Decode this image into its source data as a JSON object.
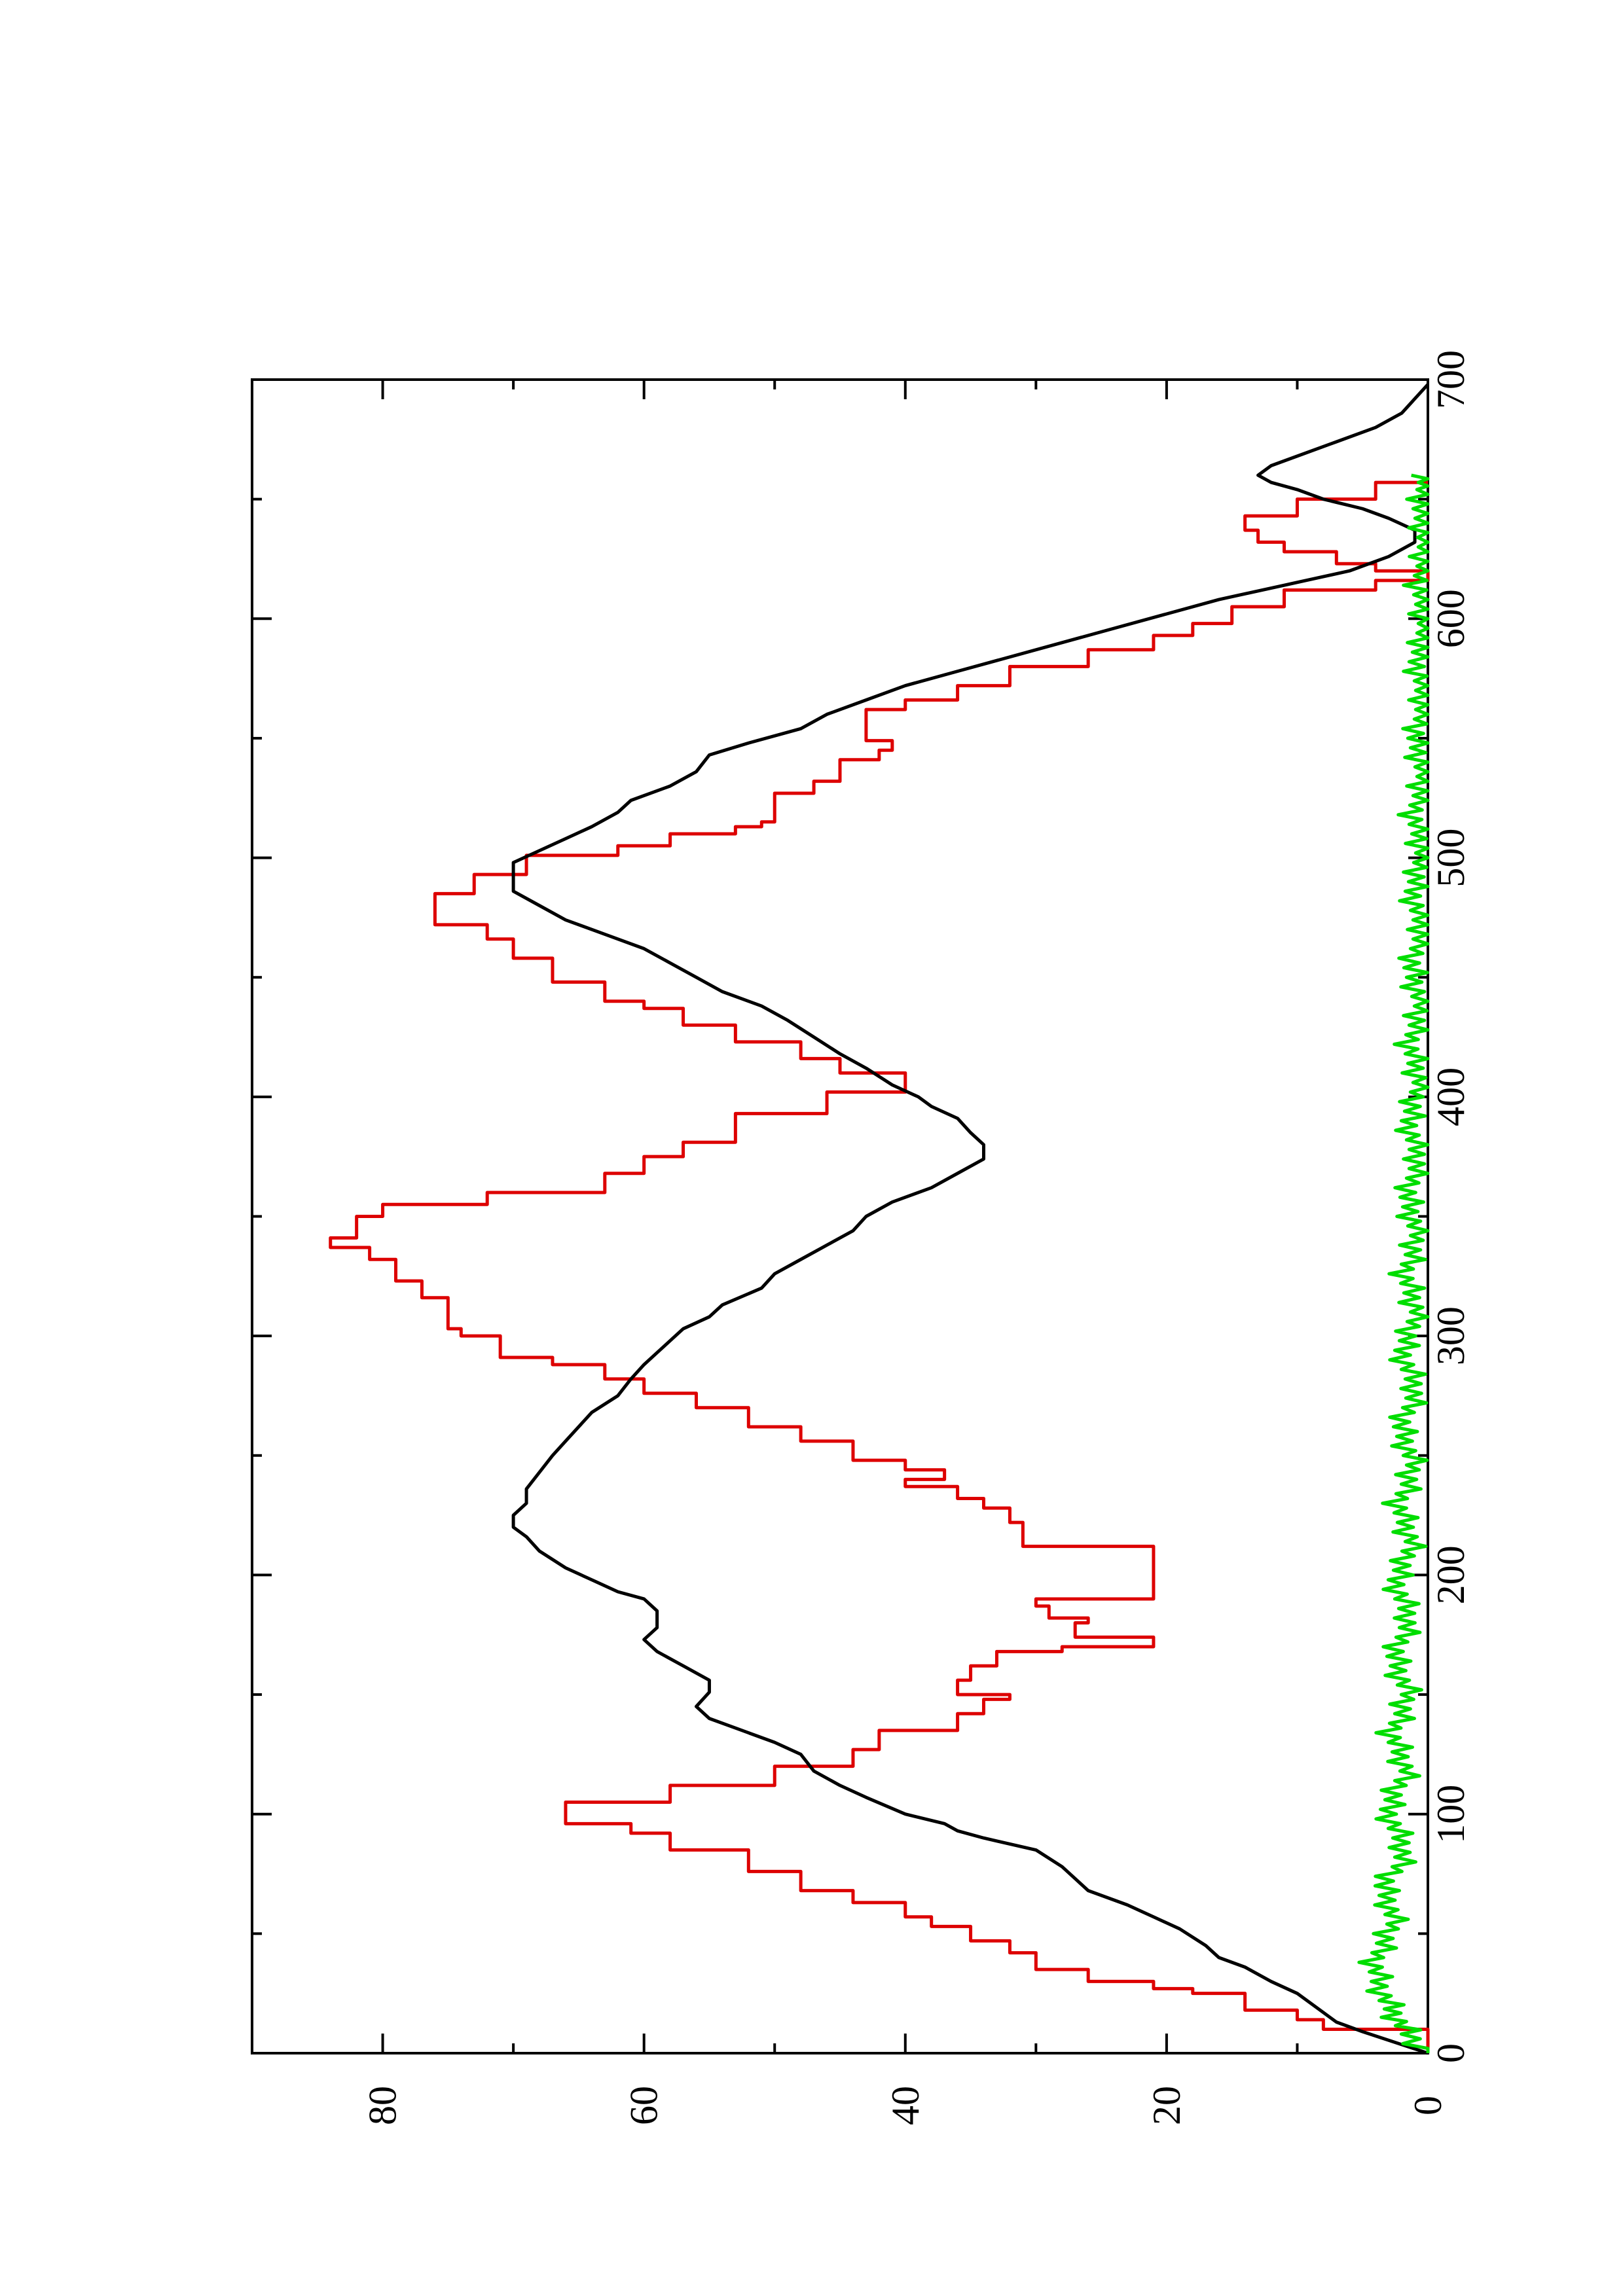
{
  "chart_data": {
    "type": "line",
    "orientation": "rotated 90° counter-clockwise (x axis vertical, y axis horizontal)",
    "title": "",
    "xlabel": "",
    "ylabel": "",
    "xlim": [
      0,
      700
    ],
    "ylim": [
      0,
      90
    ],
    "x_ticks": [
      0,
      100,
      200,
      300,
      400,
      500,
      600,
      700
    ],
    "x_tick_labels": [
      "0",
      "100",
      "200",
      "300",
      "400",
      "500",
      "600",
      "700"
    ],
    "y_ticks": [
      0,
      20,
      40,
      60,
      80
    ],
    "y_tick_labels": [
      "0",
      "20",
      "40",
      "60",
      "80"
    ],
    "grid": false,
    "legend": "none",
    "series": [
      {
        "color": "#dd0000",
        "style": "step",
        "points": [
          [
            0,
            0
          ],
          [
            10,
            8
          ],
          [
            14,
            10
          ],
          [
            18,
            14
          ],
          [
            25,
            18
          ],
          [
            27,
            21
          ],
          [
            30,
            26
          ],
          [
            35,
            30
          ],
          [
            42,
            32
          ],
          [
            47,
            35
          ],
          [
            53,
            38
          ],
          [
            57,
            40
          ],
          [
            63,
            44
          ],
          [
            68,
            48
          ],
          [
            76,
            52
          ],
          [
            85,
            58
          ],
          [
            92,
            61
          ],
          [
            96,
            66
          ],
          [
            105,
            58
          ],
          [
            112,
            50
          ],
          [
            120,
            44
          ],
          [
            127,
            42
          ],
          [
            135,
            36
          ],
          [
            142,
            34
          ],
          [
            148,
            32
          ],
          [
            150,
            36
          ],
          [
            156,
            35
          ],
          [
            162,
            33
          ],
          [
            168,
            28
          ],
          [
            170,
            21
          ],
          [
            174,
            27
          ],
          [
            180,
            26
          ],
          [
            182,
            29
          ],
          [
            187,
            30
          ],
          [
            190,
            21
          ],
          [
            196,
            21
          ],
          [
            212,
            31
          ],
          [
            222,
            32
          ],
          [
            228,
            34
          ],
          [
            232,
            36
          ],
          [
            237,
            40
          ],
          [
            240,
            37
          ],
          [
            244,
            40
          ],
          [
            248,
            44
          ],
          [
            256,
            48
          ],
          [
            262,
            52
          ],
          [
            270,
            56
          ],
          [
            276,
            60
          ],
          [
            282,
            63
          ],
          [
            288,
            67
          ],
          [
            291,
            71
          ],
          [
            300,
            74
          ],
          [
            303,
            75
          ],
          [
            316,
            77
          ],
          [
            323,
            79
          ],
          [
            332,
            81
          ],
          [
            337,
            84
          ],
          [
            341,
            82
          ],
          [
            350,
            80
          ],
          [
            355,
            72
          ],
          [
            360,
            63
          ],
          [
            368,
            60
          ],
          [
            375,
            57
          ],
          [
            381,
            53
          ],
          [
            393,
            46
          ],
          [
            402,
            40
          ],
          [
            410,
            45
          ],
          [
            416,
            48
          ],
          [
            423,
            53
          ],
          [
            430,
            57
          ],
          [
            437,
            60
          ],
          [
            440,
            63
          ],
          [
            448,
            67
          ],
          [
            455,
            67
          ],
          [
            458,
            70
          ],
          [
            466,
            72
          ],
          [
            472,
            76
          ],
          [
            478,
            76
          ],
          [
            485,
            73
          ],
          [
            493,
            69
          ],
          [
            501,
            62
          ],
          [
            505,
            58
          ],
          [
            510,
            53
          ],
          [
            513,
            51
          ],
          [
            515,
            50
          ],
          [
            520,
            50
          ],
          [
            527,
            47
          ],
          [
            532,
            45
          ],
          [
            541,
            42
          ],
          [
            545,
            41
          ],
          [
            549,
            43
          ],
          [
            556,
            43
          ],
          [
            562,
            40
          ],
          [
            566,
            36
          ],
          [
            572,
            32
          ],
          [
            580,
            26
          ],
          [
            587,
            21
          ],
          [
            593,
            18
          ],
          [
            598,
            15
          ],
          [
            605,
            11
          ],
          [
            612,
            4
          ],
          [
            616,
            0
          ],
          [
            620,
            4
          ],
          [
            623,
            7
          ],
          [
            628,
            11
          ],
          [
            632,
            13
          ],
          [
            637,
            14
          ],
          [
            643,
            10
          ],
          [
            650,
            4
          ],
          [
            657,
            0
          ]
        ]
      },
      {
        "color": "#000000",
        "style": "line",
        "points": [
          [
            0,
            0
          ],
          [
            9,
            5
          ],
          [
            13,
            7
          ],
          [
            17,
            8
          ],
          [
            25,
            10
          ],
          [
            30,
            12
          ],
          [
            36,
            14
          ],
          [
            40,
            16
          ],
          [
            45,
            17
          ],
          [
            52,
            19
          ],
          [
            57,
            21
          ],
          [
            62,
            23
          ],
          [
            68,
            26
          ],
          [
            73,
            27
          ],
          [
            78,
            28
          ],
          [
            85,
            30
          ],
          [
            90,
            34
          ],
          [
            93,
            36
          ],
          [
            96,
            37
          ],
          [
            100,
            40
          ],
          [
            107,
            43
          ],
          [
            112,
            45
          ],
          [
            118,
            47
          ],
          [
            125,
            48
          ],
          [
            130,
            50
          ],
          [
            136,
            53
          ],
          [
            140,
            55
          ],
          [
            145,
            56
          ],
          [
            151,
            55
          ],
          [
            156,
            55
          ],
          [
            162,
            57
          ],
          [
            168,
            59
          ],
          [
            173,
            60
          ],
          [
            178,
            59
          ],
          [
            185,
            59
          ],
          [
            190,
            60
          ],
          [
            193,
            62
          ],
          [
            198,
            64
          ],
          [
            203,
            66
          ],
          [
            210,
            68
          ],
          [
            216,
            69
          ],
          [
            220,
            70
          ],
          [
            225,
            70
          ],
          [
            230,
            69
          ],
          [
            236,
            69
          ],
          [
            243,
            68
          ],
          [
            250,
            67
          ],
          [
            256,
            66
          ],
          [
            262,
            65
          ],
          [
            268,
            64
          ],
          [
            275,
            62
          ],
          [
            282,
            61
          ],
          [
            288,
            60
          ],
          [
            293,
            59
          ],
          [
            298,
            58
          ],
          [
            303,
            57
          ],
          [
            308,
            55
          ],
          [
            313,
            54
          ],
          [
            320,
            51
          ],
          [
            326,
            50
          ],
          [
            332,
            48
          ],
          [
            338,
            46
          ],
          [
            344,
            44
          ],
          [
            350,
            43
          ],
          [
            356,
            41
          ],
          [
            362,
            38
          ],
          [
            368,
            36
          ],
          [
            374,
            34
          ],
          [
            380,
            34
          ],
          [
            385,
            35
          ],
          [
            391,
            36
          ],
          [
            396,
            38
          ],
          [
            400,
            39
          ],
          [
            405,
            41
          ],
          [
            412,
            43
          ],
          [
            418,
            45
          ],
          [
            425,
            47
          ],
          [
            432,
            49
          ],
          [
            438,
            51
          ],
          [
            444,
            54
          ],
          [
            450,
            56
          ],
          [
            456,
            58
          ],
          [
            462,
            60
          ],
          [
            468,
            63
          ],
          [
            474,
            66
          ],
          [
            480,
            68
          ],
          [
            486,
            70
          ],
          [
            492,
            70
          ],
          [
            498,
            70
          ],
          [
            503,
            68
          ],
          [
            508,
            66
          ],
          [
            513,
            64
          ],
          [
            519,
            62
          ],
          [
            524,
            61
          ],
          [
            530,
            58
          ],
          [
            536,
            56
          ],
          [
            543,
            55
          ],
          [
            548,
            52
          ],
          [
            554,
            48
          ],
          [
            560,
            46
          ],
          [
            566,
            43
          ],
          [
            572,
            40
          ],
          [
            578,
            36
          ],
          [
            584,
            32
          ],
          [
            590,
            28
          ],
          [
            596,
            24
          ],
          [
            602,
            20
          ],
          [
            608,
            16
          ],
          [
            614,
            11
          ],
          [
            620,
            6
          ],
          [
            626,
            3
          ],
          [
            632,
            1
          ],
          [
            637,
            1
          ],
          [
            642,
            3
          ],
          [
            646,
            5
          ],
          [
            650,
            8
          ],
          [
            654,
            10
          ],
          [
            657,
            12
          ],
          [
            660,
            13
          ],
          [
            664,
            12
          ],
          [
            668,
            10
          ],
          [
            674,
            7
          ],
          [
            680,
            4
          ],
          [
            686,
            2
          ],
          [
            692,
            1
          ],
          [
            698,
            0
          ]
        ]
      },
      {
        "color": "#00dd00",
        "style": "noisy",
        "points": [
          [
            0,
            0
          ],
          [
            8,
            1.5
          ],
          [
            15,
            2.4
          ],
          [
            22,
            3.2
          ],
          [
            30,
            3.8
          ],
          [
            38,
            4.1
          ],
          [
            46,
            3.4
          ],
          [
            54,
            2.6
          ],
          [
            62,
            2.9
          ],
          [
            70,
            3.5
          ],
          [
            78,
            2.2
          ],
          [
            86,
            1.8
          ],
          [
            94,
            2.5
          ],
          [
            102,
            3.1
          ],
          [
            110,
            2.4
          ],
          [
            118,
            1.6
          ],
          [
            126,
            2.2
          ],
          [
            134,
            2.8
          ],
          [
            142,
            2.0
          ],
          [
            150,
            1.5
          ],
          [
            158,
            2.1
          ],
          [
            166,
            2.6
          ],
          [
            174,
            1.9
          ],
          [
            182,
            1.4
          ],
          [
            190,
            2.0
          ],
          [
            198,
            2.5
          ],
          [
            206,
            1.7
          ],
          [
            214,
            1.2
          ],
          [
            222,
            1.8
          ],
          [
            230,
            2.3
          ],
          [
            238,
            1.5
          ],
          [
            246,
            1.1
          ],
          [
            254,
            1.6
          ],
          [
            262,
            2.1
          ],
          [
            270,
            1.4
          ],
          [
            278,
            0.9
          ],
          [
            286,
            1.5
          ],
          [
            294,
            2.0
          ],
          [
            302,
            1.3
          ],
          [
            310,
            0.8
          ],
          [
            318,
            1.3
          ],
          [
            326,
            1.8
          ],
          [
            334,
            1.2
          ],
          [
            342,
            0.8
          ],
          [
            350,
            1.2
          ],
          [
            358,
            1.6
          ],
          [
            366,
            1.1
          ],
          [
            374,
            0.7
          ],
          [
            382,
            1.1
          ],
          [
            390,
            1.5
          ],
          [
            398,
            1.0
          ],
          [
            406,
            0.6
          ],
          [
            414,
            1.0
          ],
          [
            422,
            1.4
          ],
          [
            430,
            0.9
          ],
          [
            438,
            0.5
          ],
          [
            446,
            0.9
          ],
          [
            454,
            1.3
          ],
          [
            462,
            0.8
          ],
          [
            470,
            0.4
          ],
          [
            478,
            0.8
          ],
          [
            486,
            1.2
          ],
          [
            494,
            0.7
          ],
          [
            502,
            0.4
          ],
          [
            510,
            0.7
          ],
          [
            518,
            1.1
          ],
          [
            526,
            0.6
          ],
          [
            534,
            0.3
          ],
          [
            542,
            0.6
          ],
          [
            550,
            1.0
          ],
          [
            558,
            0.5
          ],
          [
            566,
            0.3
          ],
          [
            574,
            0.5
          ],
          [
            582,
            0.9
          ],
          [
            590,
            0.4
          ],
          [
            598,
            0.2
          ],
          [
            606,
            0.4
          ],
          [
            614,
            0.7
          ],
          [
            622,
            0.3
          ],
          [
            630,
            0.2
          ],
          [
            638,
            0.3
          ],
          [
            646,
            0.6
          ],
          [
            654,
            0.3
          ],
          [
            660,
            0.1
          ]
        ]
      }
    ]
  }
}
